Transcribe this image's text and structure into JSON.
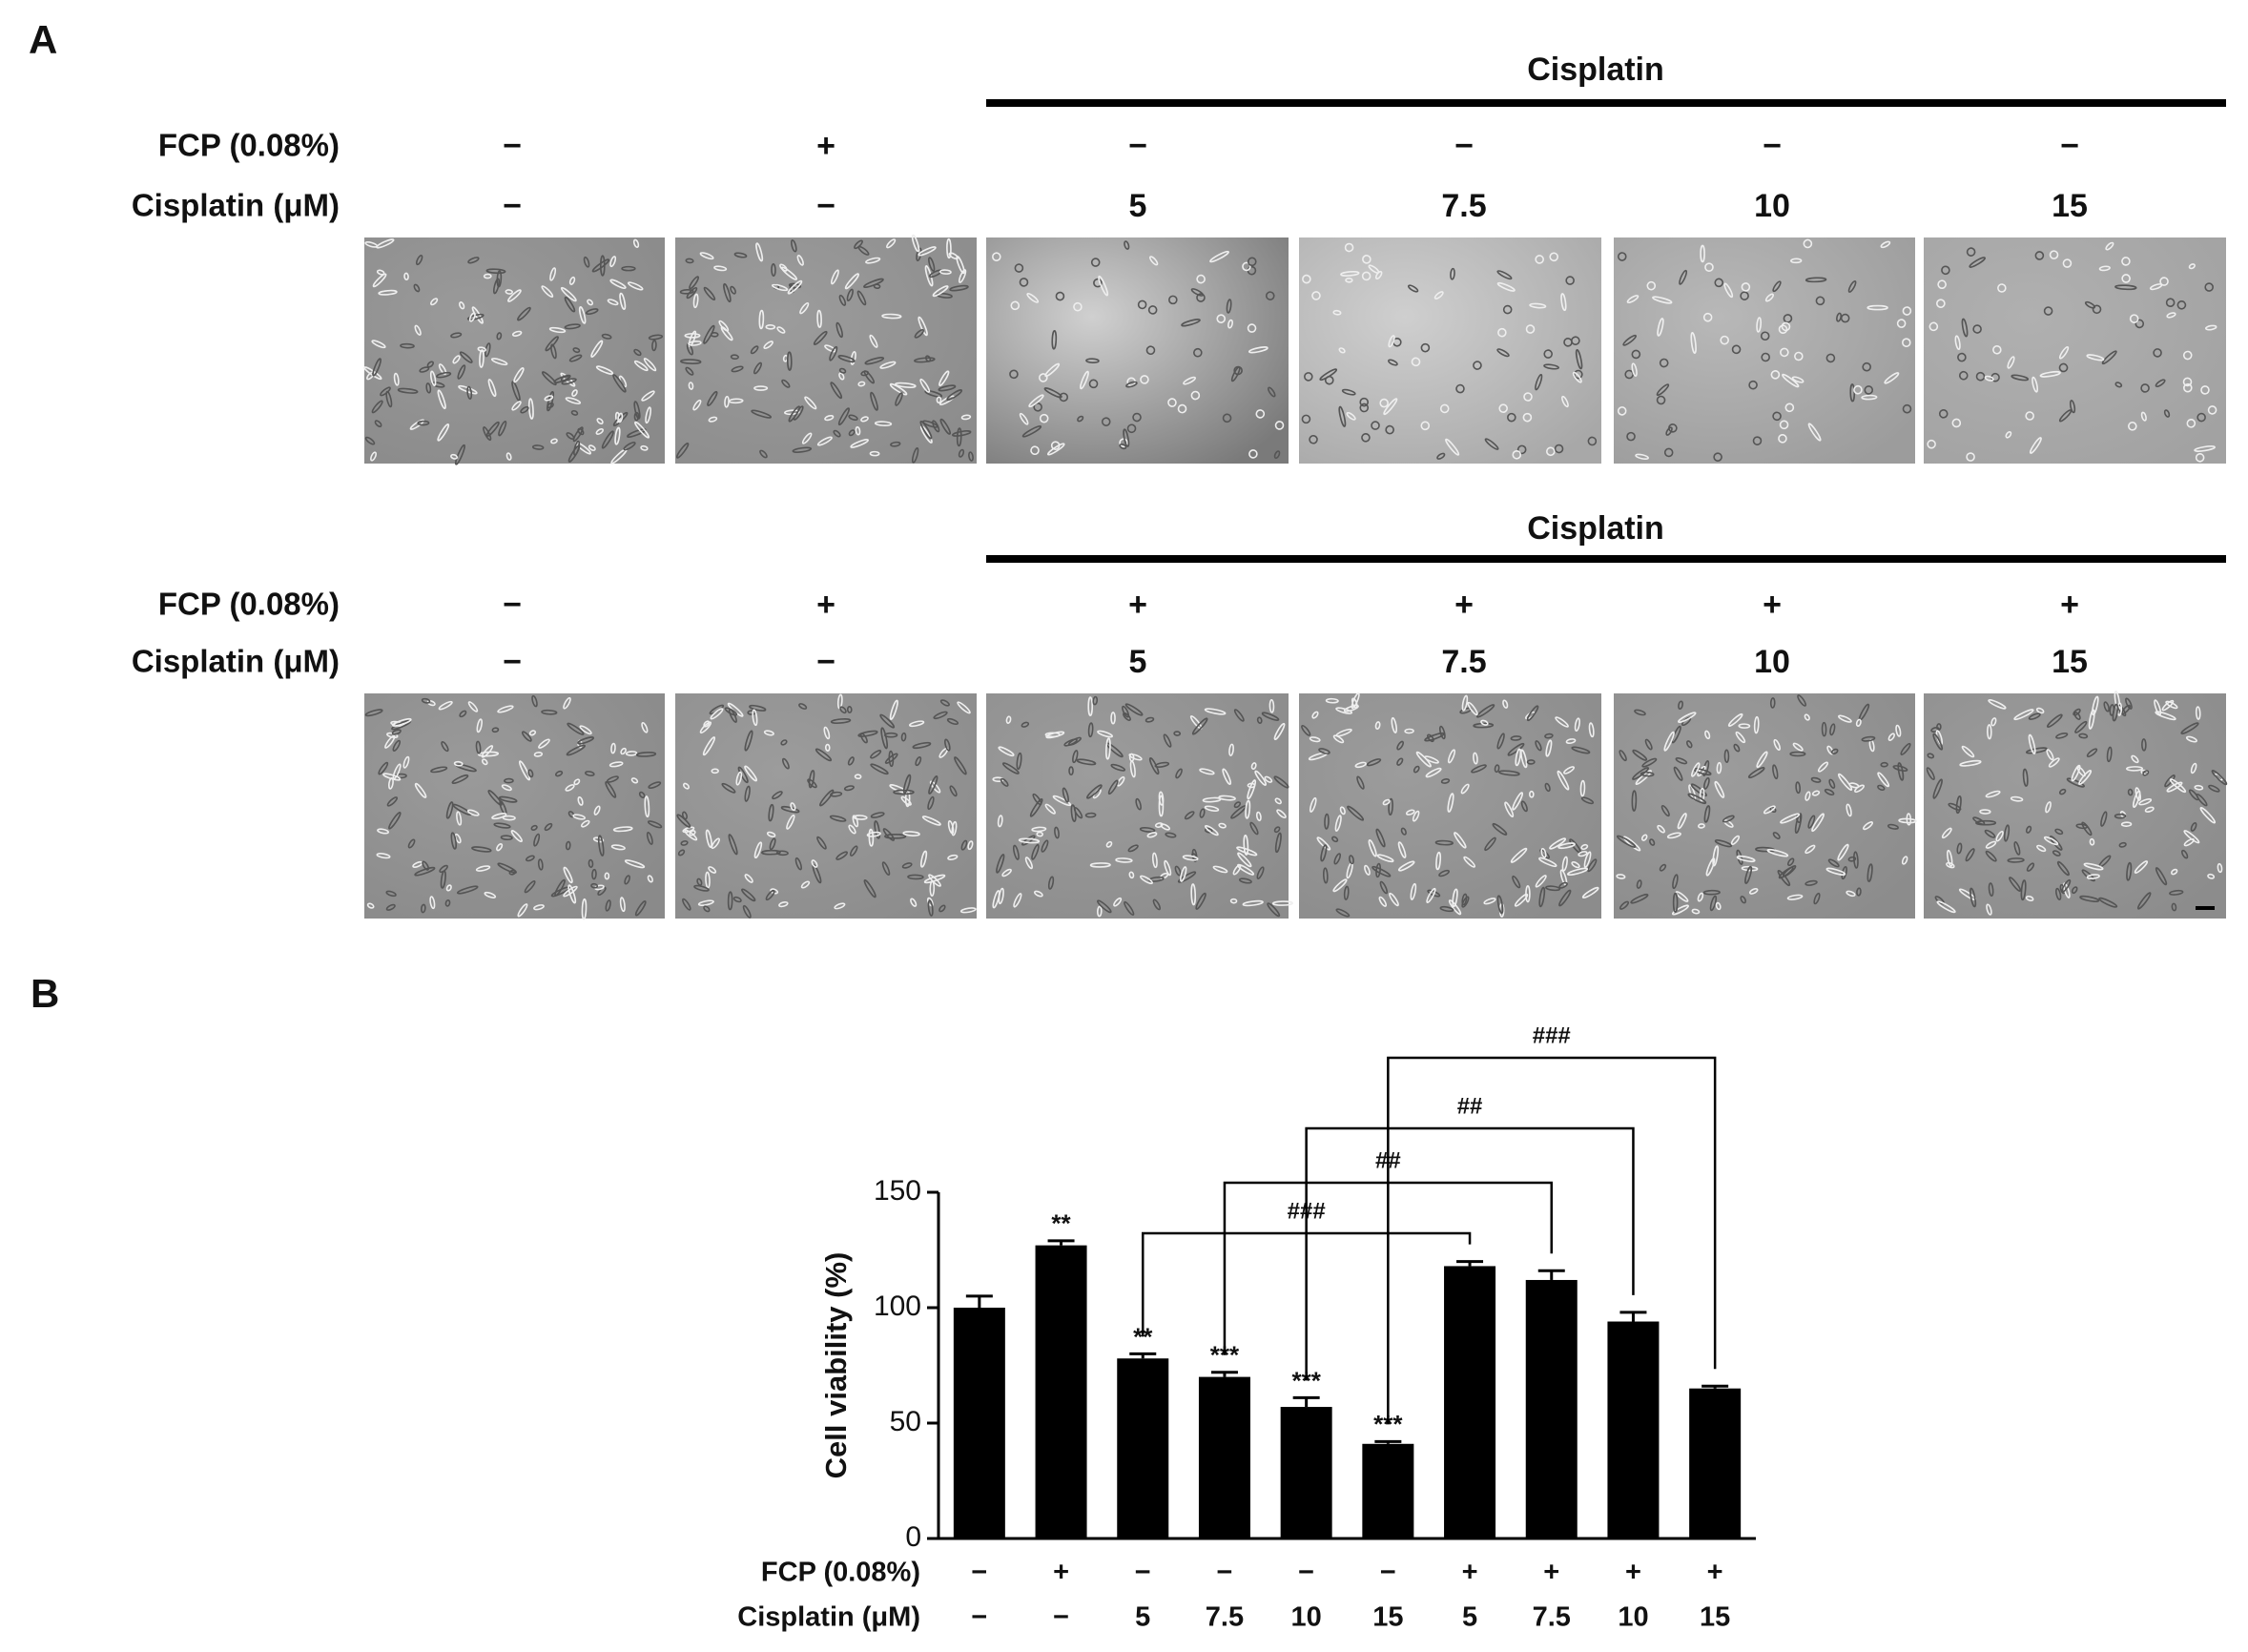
{
  "panel_a": {
    "label": "A",
    "rows": [
      {
        "group_label": "Cisplatin",
        "row_labels": [
          "FCP (0.08%)",
          "Cisplatin (μM)"
        ],
        "fcp": [
          "−",
          "+",
          "−",
          "−",
          "−",
          "−"
        ],
        "cisplatin": [
          "−",
          "−",
          "5",
          "7.5",
          "10",
          "15"
        ]
      },
      {
        "group_label": "Cisplatin",
        "row_labels": [
          "FCP (0.08%)",
          "Cisplatin (μM)"
        ],
        "fcp": [
          "−",
          "+",
          "+",
          "+",
          "+",
          "+"
        ],
        "cisplatin": [
          "−",
          "−",
          "5",
          "7.5",
          "10",
          "15"
        ]
      }
    ]
  },
  "panel_b": {
    "label": "B"
  },
  "chart_data": {
    "type": "bar",
    "y_label": "Cell viability (%)",
    "row_labels": [
      "FCP (0.08%)",
      "Cisplatin (μM)"
    ],
    "fcp": [
      "−",
      "+",
      "−",
      "−",
      "−",
      "−",
      "+",
      "+",
      "+",
      "+"
    ],
    "cisplatin": [
      "−",
      "−",
      "5",
      "7.5",
      "10",
      "15",
      "5",
      "7.5",
      "10",
      "15"
    ],
    "values": [
      100,
      127,
      78,
      70,
      57,
      41,
      118,
      112,
      94,
      65
    ],
    "errors": [
      5,
      2,
      2,
      2,
      4,
      1,
      2,
      4,
      4,
      1
    ],
    "annotations": [
      null,
      "**",
      "**",
      "***",
      "***",
      "***",
      null,
      null,
      null,
      null
    ],
    "brackets": [
      {
        "bars": [
          2,
          6
        ],
        "label": "###"
      },
      {
        "bars": [
          3,
          7
        ],
        "label": "##"
      },
      {
        "bars": [
          4,
          8
        ],
        "label": "##"
      },
      {
        "bars": [
          5,
          9
        ],
        "label": "###"
      }
    ],
    "color": "#000000",
    "ylim": [
      0,
      150
    ],
    "yticks": [
      0,
      50,
      100,
      150
    ]
  }
}
